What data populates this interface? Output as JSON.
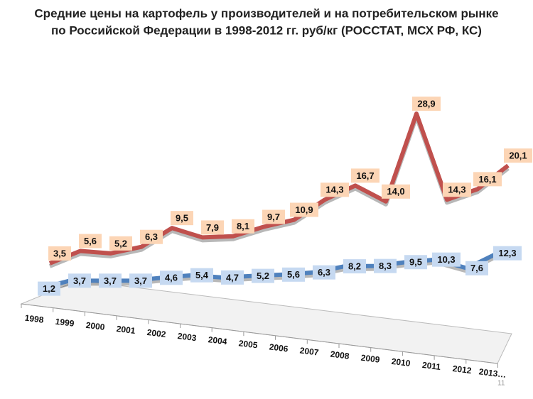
{
  "chart_data": {
    "type": "line3d",
    "title_lines": [
      "Средние цены на картофель у производителей и на потребительском рынке",
      "по Российской Федерации в 1998-2012 гг. руб/кг  (РОССТАТ, МСХ РФ, КС)"
    ],
    "categories": [
      "1998",
      "1999",
      "2000",
      "2001",
      "2002",
      "2003",
      "2004",
      "2005",
      "2006",
      "2007",
      "2008",
      "2009",
      "2010",
      "2011",
      "2012",
      "2013…"
    ],
    "series": [
      {
        "color": "#c0504d",
        "label_fill": "#fcd5b5",
        "values": [
          3.5,
          5.6,
          5.2,
          6.3,
          9.5,
          7.9,
          8.1,
          9.7,
          10.9,
          14.3,
          16.7,
          14.0,
          28.9,
          14.3,
          16.1,
          20.1
        ],
        "value_labels": [
          "3,5",
          "5,6",
          "5,2",
          "6,3",
          "9,5",
          "7,9",
          "8,1",
          "9,7",
          "10,9",
          "14,3",
          "16,7",
          "14,0",
          "28,9",
          "14,3",
          "16,1",
          "20,1"
        ]
      },
      {
        "color": "#4f81bd",
        "label_fill": "#c6d9f1",
        "values": [
          1.2,
          3.7,
          3.7,
          3.7,
          4.6,
          5.4,
          4.7,
          5.2,
          5.6,
          6.3,
          8.2,
          8.3,
          9.5,
          10.3,
          7.6,
          12.3
        ],
        "value_labels": [
          "1,2",
          "3,7",
          "3,7",
          "3,7",
          "4,6",
          "5,4",
          "4,7",
          "5,2",
          "5,6",
          "6,3",
          "8,2",
          "8,3",
          "9,5",
          "10,3",
          "7,6",
          "12,3"
        ]
      }
    ],
    "page_number": "11"
  }
}
